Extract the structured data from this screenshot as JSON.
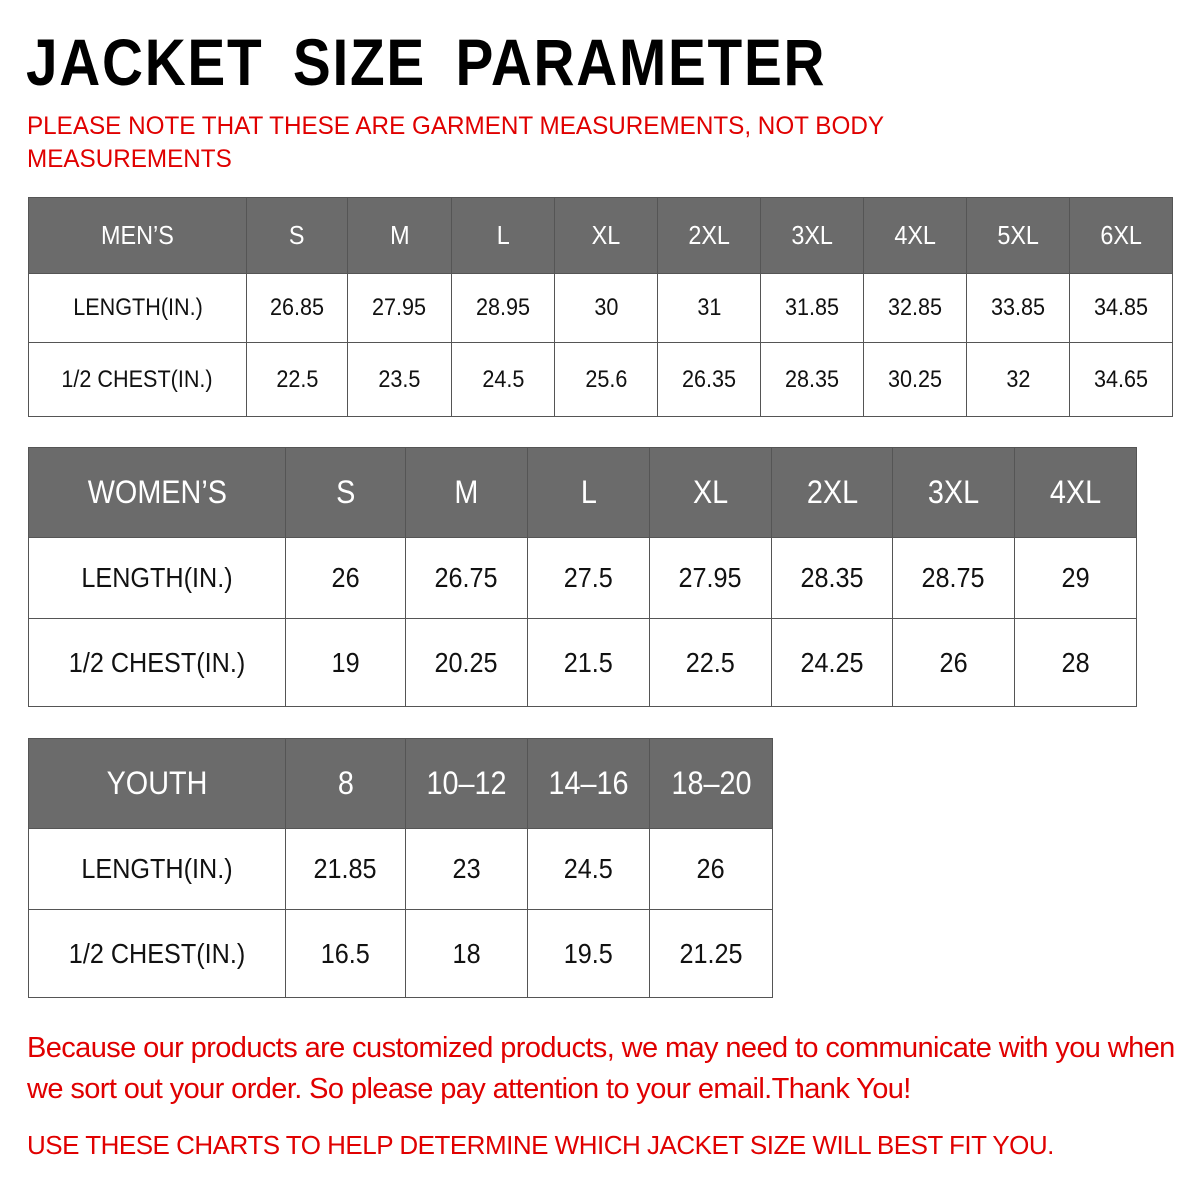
{
  "title": "JACKET  SIZE  PARAMETER",
  "note": "PLEASE NOTE THAT THESE ARE GARMENT MEASUREMENTS, NOT BODY MEASUREMENTS",
  "colors": {
    "header_bg": "#6b6b6b",
    "note_red": "#e00000"
  },
  "tables": {
    "men": {
      "header": [
        "MEN’S",
        "S",
        "M",
        "L",
        "XL",
        "2XL",
        "3XL",
        "4XL",
        "5XL",
        "6XL"
      ],
      "rows": [
        [
          "LENGTH(IN.)",
          "26.85",
          "27.95",
          "28.95",
          "30",
          "31",
          "31.85",
          "32.85",
          "33.85",
          "34.85"
        ],
        [
          "1/2 CHEST(IN.)",
          "22.5",
          "23.5",
          "24.5",
          "25.6",
          "26.35",
          "28.35",
          "30.25",
          "32",
          "34.65"
        ]
      ]
    },
    "women": {
      "header": [
        "WOMEN’S",
        "S",
        "M",
        "L",
        "XL",
        "2XL",
        "3XL",
        "4XL"
      ],
      "rows": [
        [
          "LENGTH(IN.)",
          "26",
          "26.75",
          "27.5",
          "27.95",
          "28.35",
          "28.75",
          "29"
        ],
        [
          "1/2 CHEST(IN.)",
          "19",
          "20.25",
          "21.5",
          "22.5",
          "24.25",
          "26",
          "28"
        ]
      ]
    },
    "youth": {
      "header": [
        "YOUTH",
        "8",
        "10–12",
        "14–16",
        "18–20"
      ],
      "rows": [
        [
          "LENGTH(IN.)",
          "21.85",
          "23",
          "24.5",
          "26"
        ],
        [
          "1/2 CHEST(IN.)",
          "16.5",
          "18",
          "19.5",
          "21.25"
        ]
      ]
    }
  },
  "paragraph": "Because our products are customized products, we may need to communicate with you when we sort out your order. So please pay attention to your email.Thank You!",
  "bottom_note": "USE THESE CHARTS TO HELP DETERMINE WHICH JACKET SIZE WILL BEST FIT YOU."
}
